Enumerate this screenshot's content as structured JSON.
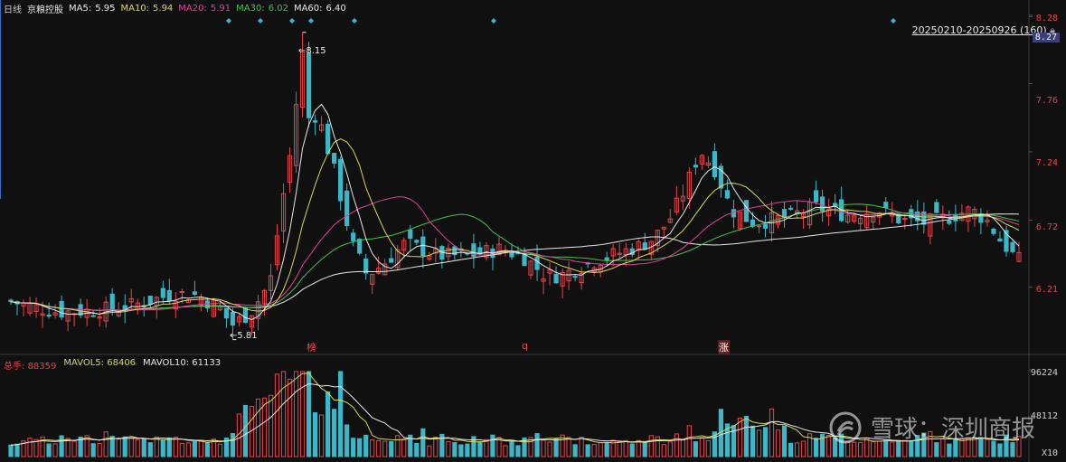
{
  "header": {
    "period": "日线",
    "stock_name": "京粮控股",
    "ma": [
      {
        "label": "MA5:",
        "value": "5.95",
        "color": "#e8e8e8"
      },
      {
        "label": "MA10:",
        "value": "5.94",
        "color": "#d8d858"
      },
      {
        "label": "MA20:",
        "value": "5.91",
        "color": "#e0409a"
      },
      {
        "label": "MA30:",
        "value": "6.02",
        "color": "#3ec34a"
      },
      {
        "label": "MA60:",
        "value": "6.40",
        "color": "#e8e8e8"
      }
    ]
  },
  "range_label": "20250210-20250926 (160)",
  "price_axis": {
    "labels": [
      {
        "text": "8.28",
        "value": 8.28,
        "color": "#e8434a"
      },
      {
        "text": "8.27",
        "value": 8.27,
        "color": "#ffffff",
        "highlight": true
      },
      {
        "text": "7.76",
        "value": 7.76,
        "color": "#e8434a"
      },
      {
        "text": "7.24",
        "value": 7.24,
        "color": "#e8434a"
      },
      {
        "text": "6.72",
        "value": 6.72,
        "color": "#e8434a"
      },
      {
        "text": "6.21",
        "value": 6.21,
        "color": "#e8434a"
      }
    ],
    "max_label": "8.15",
    "min_label": "5.81"
  },
  "markers": [
    {
      "text": "榜",
      "color": "#e8434a"
    },
    {
      "text": "q",
      "color": "#e8434a"
    },
    {
      "text": "涨",
      "color": "#ffffff"
    }
  ],
  "volume_header": {
    "total_label": "总手:",
    "total_value": "88359",
    "mavol5_label": "MAVOL5:",
    "mavol5_value": "68406",
    "mavol10_label": "MAVOL10:",
    "mavol10_value": "61133"
  },
  "volume_axis": {
    "labels": [
      {
        "text": "96224",
        "value": 96224
      },
      {
        "text": "48112",
        "value": 48112
      },
      {
        "text": "X10",
        "value": 0
      }
    ]
  },
  "watermark": "雪球：深圳商报",
  "colors": {
    "up": "#e8434a",
    "down": "#3bb7c8",
    "ma5": "#e8e8e8",
    "ma10": "#d8d858",
    "ma20": "#e0409a",
    "ma30": "#3ec34a",
    "ma60": "#e8e8e8",
    "grid": "#2a2a2a"
  },
  "chart_data": {
    "type": "candlestick",
    "bars": 160,
    "ylim": [
      5.78,
      8.3
    ],
    "close_anchors": [
      [
        0,
        6.1
      ],
      [
        6,
        6.06
      ],
      [
        12,
        6.02
      ],
      [
        20,
        6.03
      ],
      [
        28,
        6.05
      ],
      [
        34,
        6.09
      ],
      [
        42,
        6.16
      ],
      [
        48,
        6.15
      ],
      [
        54,
        6.05
      ],
      [
        57,
        5.92
      ],
      [
        62,
        6.02
      ],
      [
        67,
        6.25
      ],
      [
        70,
        6.85
      ],
      [
        72,
        7.2
      ],
      [
        75,
        7.55
      ],
      [
        77,
        7.6
      ],
      [
        80,
        7.45
      ],
      [
        84,
        7.05
      ],
      [
        88,
        6.55
      ],
      [
        92,
        6.3
      ],
      [
        96,
        6.38
      ],
      [
        102,
        6.55
      ],
      [
        110,
        6.45
      ],
      [
        118,
        6.45
      ],
      [
        126,
        6.5
      ],
      [
        132,
        6.45
      ],
      [
        138,
        6.3
      ],
      [
        142,
        6.3
      ],
      [
        150,
        6.4
      ],
      [
        156,
        6.46
      ],
      [
        162,
        6.52
      ],
      [
        166,
        6.58
      ],
      [
        170,
        6.72
      ],
      [
        174,
        6.95
      ],
      [
        178,
        7.25
      ],
      [
        182,
        7.1
      ],
      [
        186,
        6.8
      ],
      [
        192,
        6.7
      ],
      [
        200,
        6.74
      ],
      [
        208,
        6.82
      ],
      [
        216,
        6.76
      ],
      [
        224,
        6.8
      ],
      [
        230,
        6.72
      ],
      [
        236,
        6.7
      ],
      [
        242,
        6.74
      ],
      [
        248,
        6.8
      ],
      [
        252,
        6.72
      ],
      [
        256,
        6.55
      ],
      [
        260,
        6.42
      ],
      [
        262,
        6.4
      ]
    ],
    "volume_max": 96224,
    "mavol5": 68406,
    "mavol10": 61133
  }
}
